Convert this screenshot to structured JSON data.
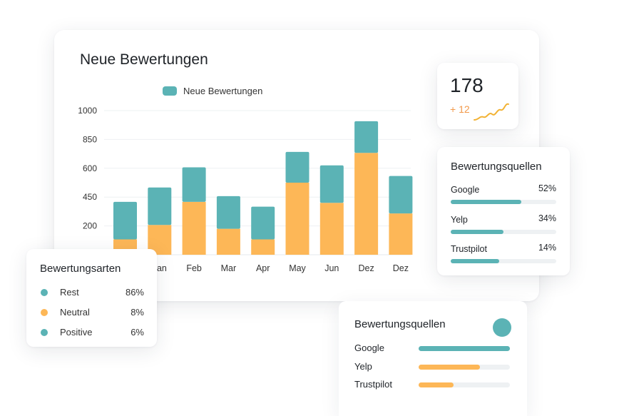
{
  "main": {
    "title": "Neue Bewertungen",
    "legend_label": "Neue Bewertungen"
  },
  "chart_data": {
    "type": "bar",
    "stacked": true,
    "title": "Neue Bewertungen",
    "categories": [
      "Jan",
      "Jan",
      "Feb",
      "Mar",
      "Apr",
      "May",
      "Jun",
      "Dez",
      "Dez"
    ],
    "y_ticks": [
      "1000",
      "850",
      "600",
      "450",
      "200"
    ],
    "series": [
      {
        "name": "",
        "color": "#fdb757",
        "values": [
          80,
          155,
          275,
          135,
          80,
          375,
          270,
          530,
          215
        ]
      },
      {
        "name": "Neue Bewertungen",
        "color": "#5bb3b5",
        "values": [
          195,
          195,
          180,
          170,
          170,
          160,
          195,
          165,
          195
        ]
      }
    ],
    "ylim": [
      0,
      750
    ],
    "grid": true,
    "legend": "top"
  },
  "kpi": {
    "value": "178",
    "delta": "+ 12",
    "spark_color": "#f2b233"
  },
  "sources": {
    "title": "Bewertungsquellen",
    "items": [
      {
        "name": "Google",
        "pct": "52%",
        "fill": 0.67
      },
      {
        "name": "Yelp",
        "pct": "34%",
        "fill": 0.5
      },
      {
        "name": "Trustpilot",
        "pct": "14%",
        "fill": 0.46
      }
    ]
  },
  "types": {
    "title": "Bewertungsarten",
    "items": [
      {
        "label": "Rest",
        "value": "86%",
        "color": "#5bb3b5"
      },
      {
        "label": "Neutral",
        "value": "8%",
        "color": "#fdb757"
      },
      {
        "label": "Positive",
        "value": "6%",
        "color": "#5bb3b5"
      }
    ]
  },
  "sources2": {
    "title": "Bewertungsquellen",
    "items": [
      {
        "name": "Google",
        "fill": 1.0,
        "color": "#5bb3b5"
      },
      {
        "name": "Yelp",
        "fill": 0.67,
        "color": "#fdb757"
      },
      {
        "name": "Trustpilot",
        "fill": 0.38,
        "color": "#fdb757"
      }
    ]
  }
}
